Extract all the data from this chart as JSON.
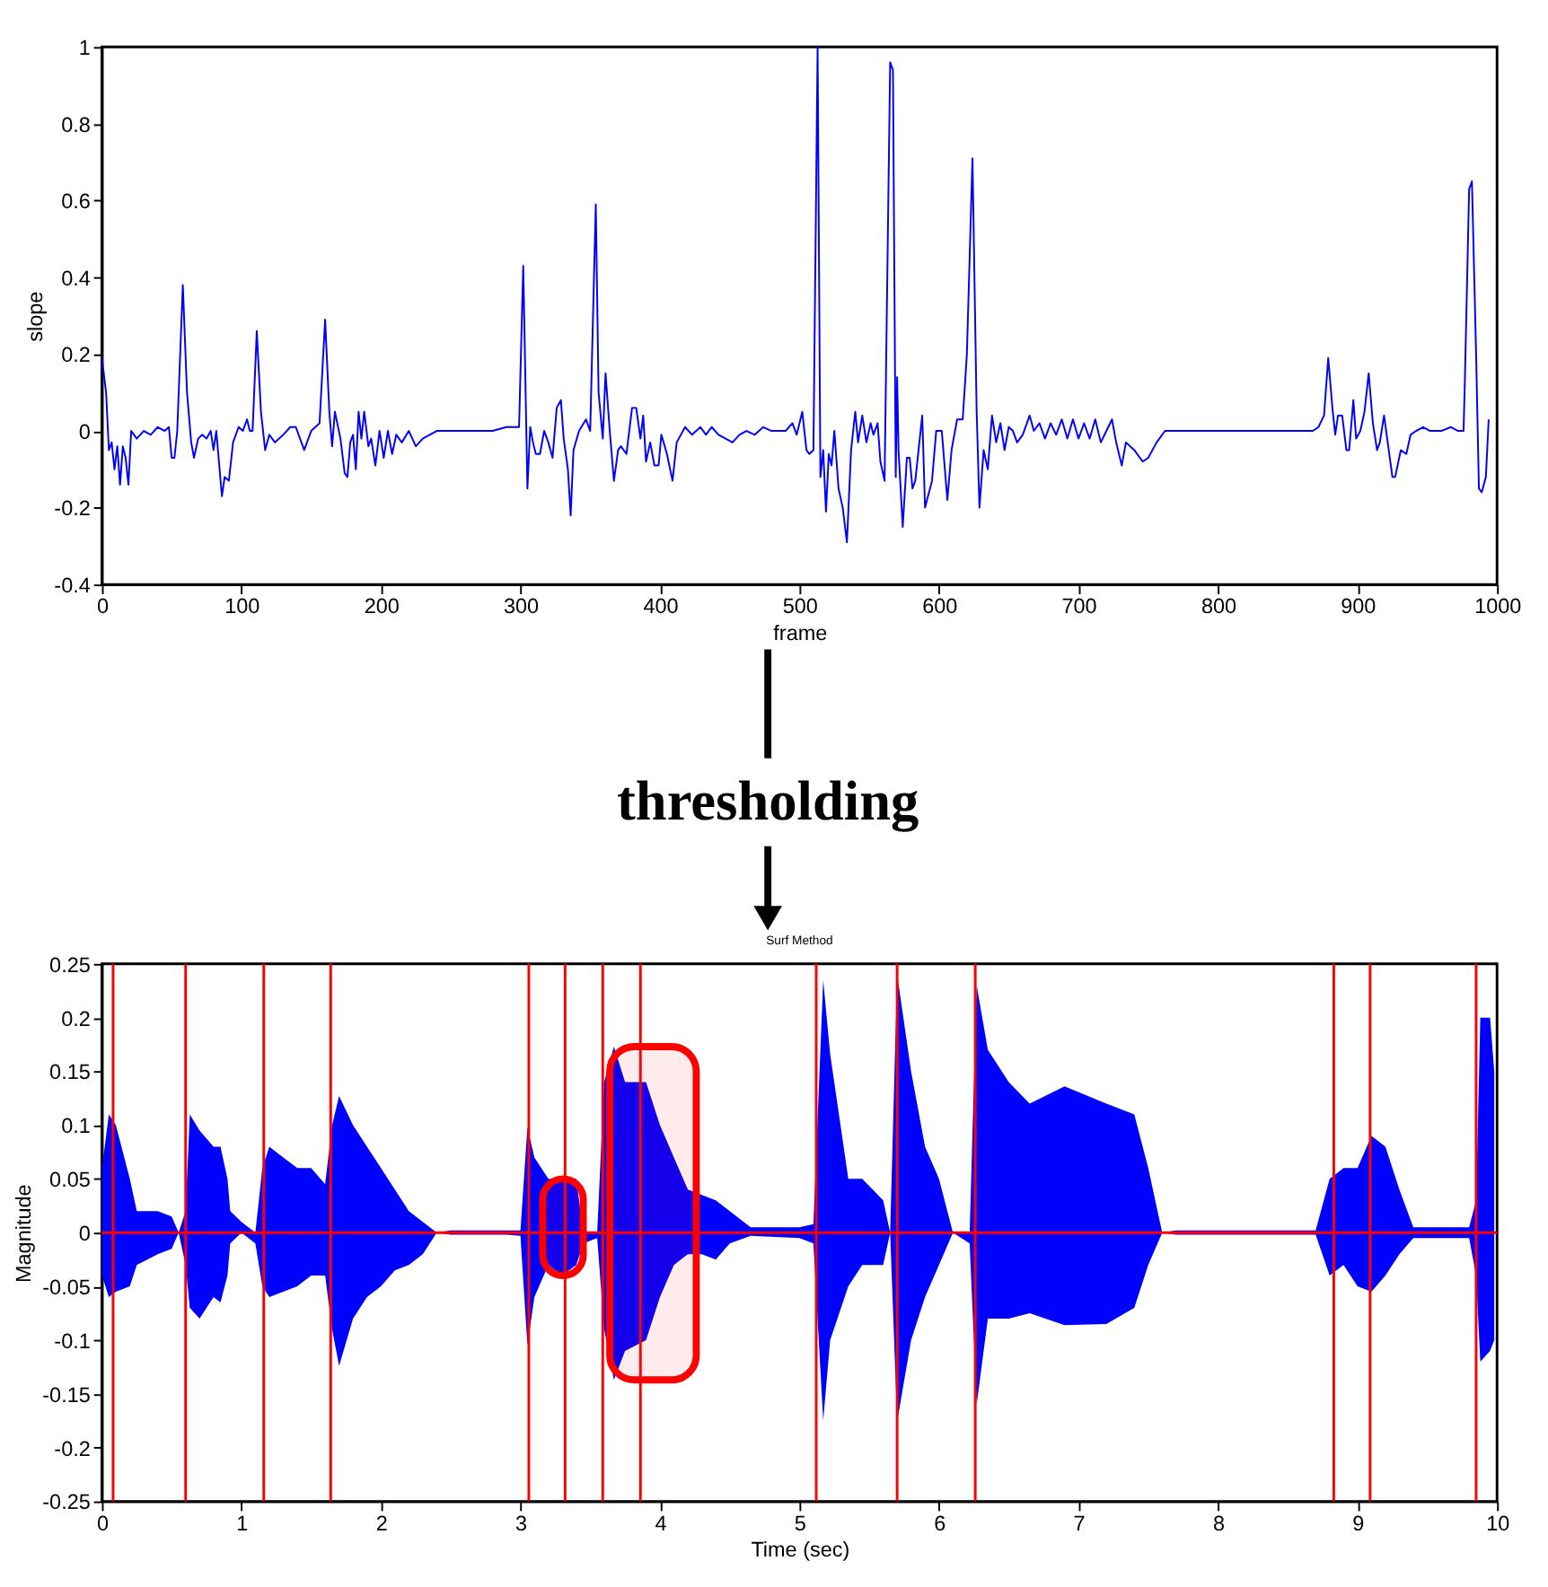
{
  "chart_data": [
    {
      "type": "line",
      "xlabel": "frame",
      "ylabel": "slope",
      "xlim": [
        0,
        1000
      ],
      "ylim": [
        -0.4,
        1
      ],
      "xticks": [
        0,
        100,
        200,
        300,
        400,
        500,
        600,
        700,
        800,
        900,
        1000
      ],
      "yticks": [
        -0.4,
        -0.2,
        0,
        0.2,
        0.4,
        0.6,
        0.8,
        1
      ],
      "grid": false,
      "x": [
        0,
        3,
        5,
        7,
        9,
        11,
        13,
        15,
        17,
        19,
        21,
        25,
        30,
        35,
        40,
        45,
        48,
        50,
        52,
        54,
        58,
        61,
        64,
        66,
        69,
        72,
        75,
        78,
        80,
        82,
        86,
        88,
        91,
        94,
        98,
        101,
        104,
        106,
        108,
        111,
        114,
        117,
        120,
        124,
        130,
        135,
        139,
        142,
        145,
        148,
        150,
        153,
        156,
        160,
        163,
        165,
        167,
        171,
        174,
        176,
        178,
        180,
        182,
        184,
        186,
        188,
        191,
        193,
        196,
        199,
        202,
        205,
        208,
        211,
        215,
        220,
        225,
        230,
        240,
        250,
        260,
        270,
        280,
        290,
        299,
        302,
        305,
        307,
        309,
        311,
        314,
        317,
        320,
        323,
        326,
        329,
        331,
        334,
        336,
        338,
        342,
        347,
        350,
        354,
        356,
        359,
        361,
        364,
        367,
        370,
        372,
        376,
        380,
        383,
        386,
        388,
        390,
        393,
        396,
        399,
        401,
        405,
        409,
        412,
        418,
        423,
        429,
        433,
        437,
        442,
        447,
        452,
        457,
        462,
        468,
        474,
        480,
        490,
        495,
        498,
        502,
        505,
        507,
        510,
        513,
        515,
        517,
        519,
        521,
        523,
        525,
        528,
        531,
        534,
        537,
        540,
        542,
        545,
        548,
        551,
        553,
        556,
        558,
        561,
        565,
        567,
        569,
        570,
        571,
        574,
        577,
        579,
        581,
        583,
        588,
        590,
        595,
        598,
        602,
        606,
        609,
        613,
        617,
        620,
        624,
        627,
        629,
        632,
        635,
        638,
        641,
        644,
        647,
        650,
        653,
        656,
        660,
        665,
        668,
        672,
        676,
        680,
        684,
        688,
        692,
        696,
        700,
        704,
        708,
        712,
        716,
        720,
        724,
        727,
        731,
        734,
        740,
        746,
        750,
        756,
        762,
        770,
        780,
        790,
        800,
        810,
        820,
        830,
        840,
        850,
        860,
        868,
        872,
        876,
        879,
        882,
        884,
        886,
        889,
        892,
        894,
        897,
        899,
        902,
        905,
        908,
        911,
        914,
        916,
        919,
        922,
        925,
        927,
        931,
        935,
        938,
        942,
        947,
        952,
        960,
        967,
        972,
        976,
        977,
        980,
        982,
        985,
        987,
        989,
        992,
        994
      ],
      "series": [
        {
          "color": "#0000ff",
          "values": [
            0.19,
            0.1,
            -0.05,
            -0.03,
            -0.1,
            -0.04,
            -0.14,
            -0.04,
            -0.07,
            -0.14,
            0.0,
            -0.02,
            0.0,
            -0.01,
            0.01,
            0.0,
            0.01,
            -0.07,
            -0.07,
            0.0,
            0.38,
            0.1,
            -0.03,
            -0.07,
            -0.02,
            -0.01,
            -0.02,
            0.0,
            -0.05,
            0.0,
            -0.17,
            -0.12,
            -0.13,
            -0.03,
            0.01,
            0.0,
            0.03,
            0.0,
            0.0,
            0.26,
            0.05,
            -0.05,
            -0.01,
            -0.03,
            -0.01,
            0.01,
            0.01,
            -0.02,
            -0.05,
            -0.02,
            0.0,
            0.01,
            0.02,
            0.29,
            0.05,
            -0.04,
            0.05,
            -0.02,
            -0.11,
            -0.12,
            -0.03,
            -0.01,
            -0.1,
            0.05,
            -0.02,
            0.05,
            -0.04,
            -0.02,
            -0.09,
            0.0,
            -0.07,
            0.0,
            -0.06,
            -0.01,
            -0.03,
            0.0,
            -0.04,
            -0.02,
            0.0,
            0.0,
            0.0,
            0.0,
            0.0,
            0.01,
            0.01,
            0.43,
            -0.15,
            0.01,
            -0.03,
            -0.06,
            -0.06,
            0.0,
            -0.03,
            -0.07,
            0.06,
            0.08,
            -0.02,
            -0.1,
            -0.22,
            -0.05,
            0.0,
            0.03,
            0.0,
            0.59,
            0.1,
            -0.02,
            0.15,
            0.0,
            -0.13,
            -0.05,
            -0.04,
            -0.06,
            0.06,
            0.06,
            -0.02,
            0.04,
            -0.08,
            -0.03,
            -0.09,
            -0.09,
            -0.01,
            -0.06,
            -0.13,
            -0.03,
            0.01,
            -0.01,
            0.01,
            -0.01,
            0.01,
            -0.01,
            -0.02,
            -0.03,
            -0.01,
            0.0,
            -0.01,
            0.01,
            0.0,
            0.0,
            0.02,
            -0.01,
            0.05,
            -0.05,
            -0.06,
            -0.05,
            1.0,
            -0.12,
            -0.05,
            -0.21,
            -0.06,
            -0.09,
            0.0,
            -0.15,
            -0.2,
            -0.29,
            -0.05,
            0.05,
            -0.03,
            0.04,
            -0.03,
            0.02,
            -0.01,
            0.02,
            -0.08,
            -0.13,
            0.96,
            0.94,
            -0.12,
            0.14,
            -0.05,
            -0.25,
            -0.07,
            -0.07,
            -0.15,
            -0.13,
            0.04,
            -0.2,
            -0.13,
            0.0,
            0.0,
            -0.18,
            -0.05,
            0.03,
            0.03,
            0.2,
            0.71,
            0.05,
            -0.2,
            -0.05,
            -0.1,
            0.04,
            -0.03,
            0.02,
            -0.05,
            0.01,
            0.0,
            -0.03,
            -0.01,
            0.04,
            0.0,
            0.02,
            -0.02,
            0.02,
            -0.01,
            0.03,
            -0.02,
            0.03,
            -0.02,
            0.02,
            -0.02,
            0.03,
            -0.03,
            0.0,
            0.03,
            -0.03,
            -0.09,
            -0.03,
            -0.05,
            -0.08,
            -0.07,
            -0.03,
            0.0,
            0.0,
            0.0,
            0.0,
            0.0,
            0.0,
            0.0,
            0.0,
            0.0,
            0.0,
            0.0,
            0.0,
            0.01,
            0.04,
            0.19,
            0.06,
            -0.01,
            0.04,
            0.04,
            -0.05,
            -0.05,
            0.08,
            -0.02,
            0.0,
            0.05,
            0.15,
            0.02,
            -0.05,
            -0.03,
            0.04,
            -0.04,
            -0.12,
            -0.12,
            -0.05,
            -0.06,
            -0.01,
            0.0,
            0.01,
            0.0,
            0.0,
            0.01,
            0.0,
            0.0,
            0.14,
            0.63,
            0.65,
            0.2,
            -0.15,
            -0.16,
            -0.12,
            0.03
          ]
        }
      ]
    },
    {
      "type": "other",
      "annotations": [
        "thresholding"
      ]
    },
    {
      "type": "area",
      "title": "Surf Method",
      "xlabel": "Time (sec)",
      "ylabel": "Magnitude",
      "xlim": [
        0,
        10
      ],
      "ylim": [
        -0.25,
        0.25
      ],
      "xticks": [
        0,
        1,
        2,
        3,
        4,
        5,
        6,
        7,
        8,
        9,
        10
      ],
      "yticks": [
        -0.25,
        -0.2,
        -0.15,
        -0.1,
        -0.05,
        0,
        0.05,
        0.1,
        0.15,
        0.2,
        0.25
      ],
      "grid": false,
      "x": [
        0.0,
        0.05,
        0.1,
        0.2,
        0.25,
        0.4,
        0.5,
        0.55,
        0.6,
        0.63,
        0.7,
        0.8,
        0.85,
        0.9,
        0.92,
        1.0,
        1.1,
        1.15,
        1.2,
        1.3,
        1.4,
        1.5,
        1.6,
        1.65,
        1.7,
        1.8,
        1.9,
        2.0,
        2.1,
        2.2,
        2.3,
        2.4,
        2.5,
        2.9,
        3.0,
        3.05,
        3.1,
        3.2,
        3.3,
        3.4,
        3.45,
        3.55,
        3.6,
        3.67,
        3.75,
        3.9,
        4.0,
        4.1,
        4.2,
        4.3,
        4.4,
        4.5,
        4.65,
        5.0,
        5.1,
        5.17,
        5.22,
        5.35,
        5.45,
        5.6,
        5.65,
        5.7,
        5.8,
        5.9,
        6.0,
        6.1,
        6.22,
        6.27,
        6.35,
        6.5,
        6.65,
        6.9,
        7.2,
        7.4,
        7.5,
        7.6,
        7.7,
        8.7,
        8.8,
        8.9,
        9.0,
        9.1,
        9.2,
        9.3,
        9.4,
        9.8,
        9.85,
        9.88,
        9.95,
        9.98
      ],
      "series": [
        {
          "color": "#0000ff",
          "values": [
            0.06,
            0.11,
            0.1,
            0.05,
            0.02,
            0.02,
            0.015,
            0.0,
            0.02,
            0.11,
            0.095,
            0.08,
            0.08,
            0.05,
            0.02,
            0.01,
            0.0,
            0.06,
            0.08,
            0.07,
            0.06,
            0.06,
            0.045,
            0.1,
            0.127,
            0.1,
            0.08,
            0.06,
            0.04,
            0.02,
            0.01,
            0.0,
            0.002,
            0.002,
            0.002,
            0.098,
            0.07,
            0.05,
            0.05,
            0.05,
            0.0,
            0.0,
            0.14,
            0.173,
            0.14,
            0.14,
            0.1,
            0.07,
            0.04,
            0.035,
            0.03,
            0.02,
            0.005,
            0.005,
            0.008,
            0.235,
            0.166,
            0.05,
            0.05,
            0.03,
            0.0,
            0.24,
            0.15,
            0.08,
            0.05,
            0.0,
            0.0,
            0.23,
            0.17,
            0.14,
            0.12,
            0.136,
            0.12,
            0.11,
            0.06,
            0.0,
            0.002,
            0.002,
            0.05,
            0.06,
            0.06,
            0.09,
            0.08,
            0.04,
            0.005,
            0.005,
            0.03,
            0.2,
            0.2,
            0.15
          ]
        },
        {
          "color": "#0000ff",
          "values": [
            -0.04,
            -0.06,
            -0.055,
            -0.05,
            -0.03,
            -0.02,
            -0.015,
            0.0,
            -0.03,
            -0.07,
            -0.08,
            -0.06,
            -0.065,
            -0.04,
            -0.01,
            0.0,
            -0.01,
            -0.05,
            -0.06,
            -0.055,
            -0.05,
            -0.04,
            -0.04,
            -0.09,
            -0.124,
            -0.08,
            -0.06,
            -0.05,
            -0.035,
            -0.03,
            -0.02,
            0.0,
            -0.002,
            -0.002,
            -0.003,
            -0.105,
            -0.06,
            -0.03,
            -0.04,
            -0.03,
            -0.01,
            -0.005,
            -0.09,
            -0.137,
            -0.11,
            -0.1,
            -0.06,
            -0.03,
            -0.02,
            -0.02,
            -0.025,
            -0.01,
            -0.003,
            -0.005,
            -0.01,
            -0.175,
            -0.1,
            -0.05,
            -0.03,
            -0.03,
            0.0,
            -0.176,
            -0.1,
            -0.06,
            -0.03,
            0.0,
            -0.01,
            -0.16,
            -0.08,
            -0.08,
            -0.075,
            -0.086,
            -0.085,
            -0.07,
            -0.03,
            0.0,
            -0.002,
            -0.002,
            -0.04,
            -0.03,
            -0.05,
            -0.055,
            -0.04,
            -0.02,
            -0.005,
            -0.005,
            -0.04,
            -0.12,
            -0.11,
            -0.1
          ]
        }
      ],
      "ref_lines": [
        {
          "axis": "y",
          "value": 0,
          "color": "#ff0000"
        },
        {
          "axis": "x",
          "value": 0.08,
          "color": "#ff0000"
        },
        {
          "axis": "x",
          "value": 0.6,
          "color": "#ff0000"
        },
        {
          "axis": "x",
          "value": 1.16,
          "color": "#ff0000"
        },
        {
          "axis": "x",
          "value": 1.64,
          "color": "#ff0000"
        },
        {
          "axis": "x",
          "value": 3.06,
          "color": "#ff0000"
        },
        {
          "axis": "x",
          "value": 3.32,
          "color": "#ff0000"
        },
        {
          "axis": "x",
          "value": 3.59,
          "color": "#ff0000"
        },
        {
          "axis": "x",
          "value": 3.86,
          "color": "#ff0000"
        },
        {
          "axis": "x",
          "value": 5.12,
          "color": "#ff0000"
        },
        {
          "axis": "x",
          "value": 5.7,
          "color": "#ff0000"
        },
        {
          "axis": "x",
          "value": 6.26,
          "color": "#ff0000"
        },
        {
          "axis": "x",
          "value": 8.83,
          "color": "#ff0000"
        },
        {
          "axis": "x",
          "value": 9.09,
          "color": "#ff0000"
        },
        {
          "axis": "x",
          "value": 9.85,
          "color": "#ff0000"
        }
      ],
      "bands": [
        {
          "axis": "x",
          "from": 3.16,
          "to": 3.45,
          "color": "#ff0000"
        },
        {
          "axis": "x",
          "from": 3.64,
          "to": 4.26,
          "color": "#ff0000"
        }
      ]
    }
  ]
}
